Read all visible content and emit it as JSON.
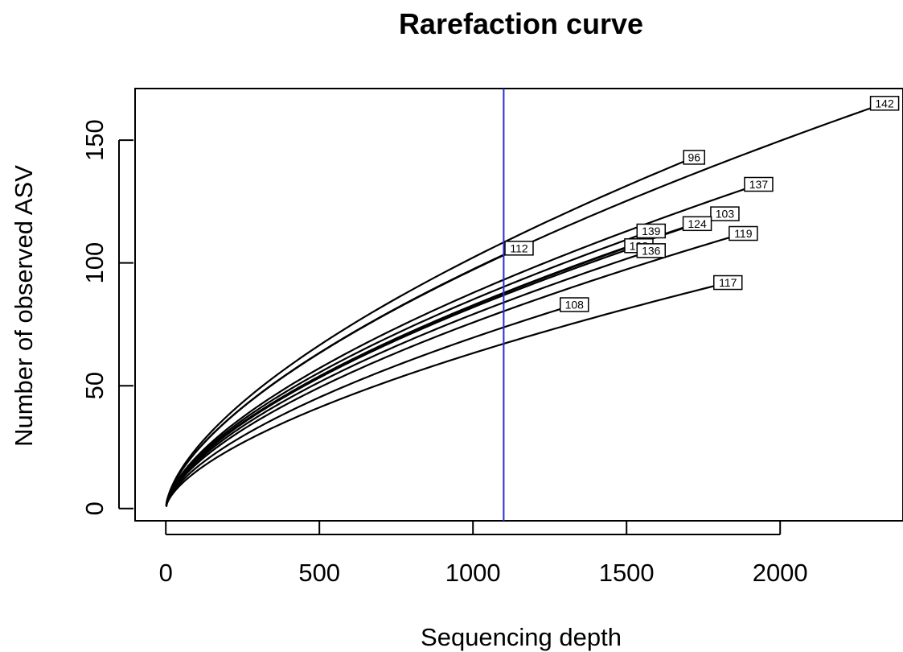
{
  "chart_data": {
    "type": "line",
    "title": "Rarefaction curve",
    "xlabel": "Sequencing depth",
    "ylabel": "Number of observed ASV",
    "xlim": [
      -100,
      2400
    ],
    "ylim": [
      -5,
      171
    ],
    "xticks": [
      0,
      500,
      1000,
      1500,
      2000
    ],
    "yticks": [
      0,
      50,
      100,
      150
    ],
    "vline": {
      "x": 1100,
      "color": "#2b2bd6"
    },
    "line_color": "#000000",
    "series": [
      {
        "name": "142",
        "max_depth": 2340,
        "final": 165
      },
      {
        "name": "96",
        "max_depth": 1720,
        "final": 143
      },
      {
        "name": "137",
        "max_depth": 1930,
        "final": 132
      },
      {
        "name": "103",
        "max_depth": 1820,
        "final": 120
      },
      {
        "name": "124",
        "max_depth": 1730,
        "final": 116
      },
      {
        "name": "139",
        "max_depth": 1580,
        "final": 113
      },
      {
        "name": "112",
        "max_depth": 1150,
        "final": 106
      },
      {
        "name": "119",
        "max_depth": 1880,
        "final": 112
      },
      {
        "name": "198",
        "max_depth": 1540,
        "final": 107
      },
      {
        "name": "136",
        "max_depth": 1580,
        "final": 105
      },
      {
        "name": "117",
        "max_depth": 1830,
        "final": 92
      },
      {
        "name": "108",
        "max_depth": 1330,
        "final": 83
      }
    ]
  }
}
